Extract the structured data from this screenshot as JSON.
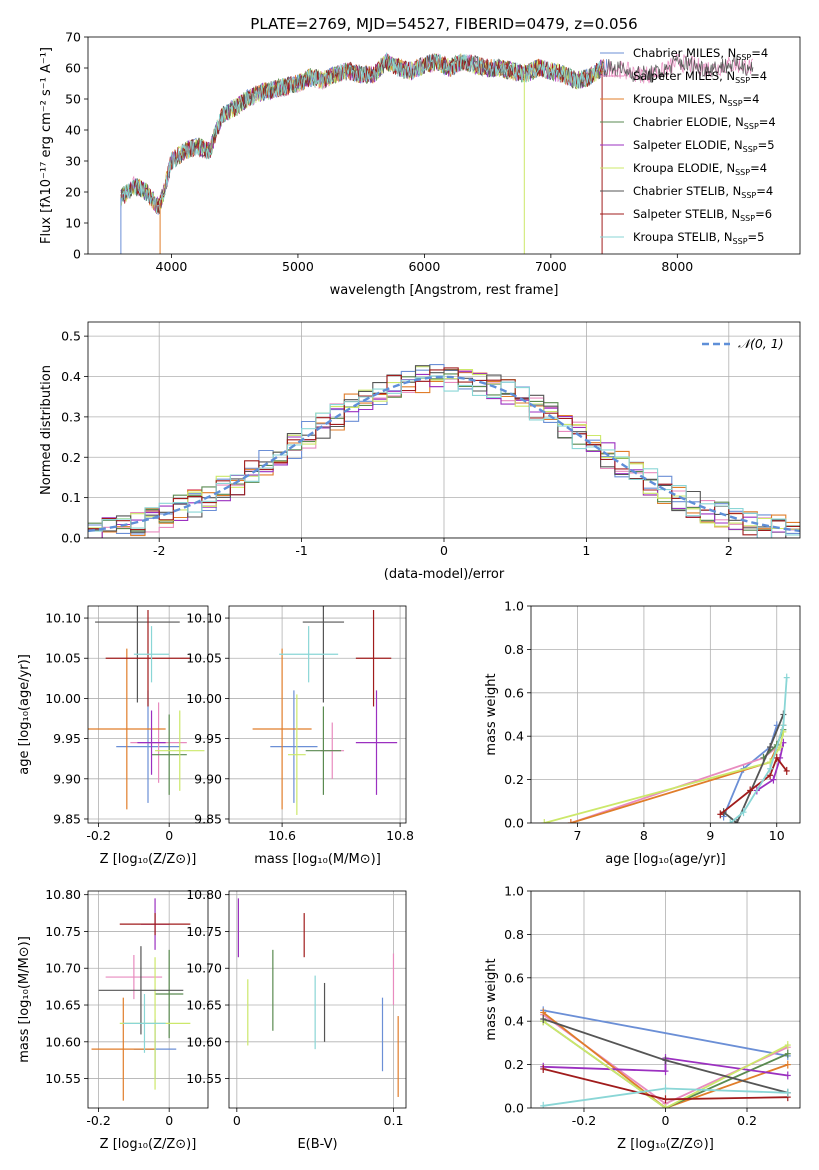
{
  "figure": {
    "title": "PLATE=2769, MJD=54527, FIBERID=0479, z=0.056"
  },
  "colors": {
    "Chabrier MILES": "#6b8fd6",
    "Salpeter MILES": "#e88bbf",
    "Kroupa MILES": "#e07d2a",
    "Chabrier ELODIE": "#5a8a50",
    "Salpeter ELODIE": "#9b30c0",
    "Kroupa ELODIE": "#cce86a",
    "Chabrier STELIB": "#555555",
    "Salpeter STELIB": "#a01c1c",
    "Kroupa STELIB": "#8ad6d6"
  },
  "chart_data": [
    {
      "id": "spectrum",
      "type": "line",
      "title": "PLATE=2769, MJD=54527, FIBERID=0479, z=0.056",
      "xlabel": "wavelength [Angstrom, rest frame]",
      "ylabel": "Flux [fλ10⁻¹⁷ erg cm⁻² s⁻¹ A⁻¹]",
      "xlim": [
        3340,
        8970
      ],
      "ylim": [
        0,
        70
      ],
      "xticks": [
        4000,
        5000,
        6000,
        7000,
        8000
      ],
      "yticks": [
        0,
        10,
        20,
        30,
        40,
        50,
        60,
        70
      ],
      "grid": false,
      "legend_position": "top-right",
      "spectrum_x": [
        3600,
        3700,
        3800,
        3900,
        3950,
        4000,
        4100,
        4200,
        4300,
        4400,
        4500,
        4600,
        4700,
        4800,
        4900,
        5000,
        5100,
        5200,
        5300,
        5400,
        5500,
        5600,
        5700,
        5800,
        5900,
        6000,
        6100,
        6200,
        6300,
        6400,
        6500,
        6600,
        6700,
        6800,
        6900,
        7000,
        7100,
        7200,
        7300,
        7400,
        7500,
        7600,
        7700,
        7800,
        7900,
        8000,
        8100,
        8200,
        8300,
        8400,
        8500,
        8600
      ],
      "spectrum_y": [
        18,
        22,
        20,
        15,
        22,
        30,
        33,
        35,
        33,
        45,
        47,
        50,
        52,
        53,
        54,
        55,
        57,
        56,
        58,
        59,
        58,
        58,
        62,
        60,
        59,
        61,
        62,
        60,
        62,
        61,
        60,
        60,
        59,
        58,
        60,
        59,
        58,
        56,
        57,
        60,
        60,
        59,
        58,
        58,
        59,
        62,
        61,
        60,
        60,
        61,
        61,
        60
      ],
      "legend": [
        {
          "label": "Chabrier MILES, N",
          "sub": "SSP",
          "suffix": "=4"
        },
        {
          "label": "Salpeter MILES, N",
          "sub": "SSP",
          "suffix": "=4"
        },
        {
          "label": "Kroupa MILES, N",
          "sub": "SSP",
          "suffix": "=4"
        },
        {
          "label": "Chabrier ELODIE, N",
          "sub": "SSP",
          "suffix": "=4"
        },
        {
          "label": "Salpeter ELODIE, N",
          "sub": "SSP",
          "suffix": "=5"
        },
        {
          "label": "Kroupa ELODIE, N",
          "sub": "SSP",
          "suffix": "=4"
        },
        {
          "label": "Chabrier STELIB, N",
          "sub": "SSP",
          "suffix": "=4"
        },
        {
          "label": "Salpeter STELIB, N",
          "sub": "SSP",
          "suffix": "=6"
        },
        {
          "label": "Kroupa STELIB, N",
          "sub": "SSP",
          "suffix": "=5"
        }
      ]
    },
    {
      "id": "residuals",
      "type": "line",
      "xlabel": "(data-model)/error",
      "ylabel": "Normed distribution",
      "xlim": [
        -2.5,
        2.5
      ],
      "ylim": [
        0,
        0.535
      ],
      "xticks": [
        -2,
        -1,
        0,
        1,
        2
      ],
      "yticks": [
        0.0,
        0.1,
        0.2,
        0.3,
        0.4,
        0.5
      ],
      "grid": true,
      "legend_position": "top-right",
      "legend_label": "𝒩(0, 1)",
      "bin_width": 0.1
    },
    {
      "id": "age_vs_Z",
      "type": "scatter",
      "xlabel": "Z [log₁₀(Z/Z⊙)]",
      "ylabel": "age  [log₁₀(age/yr)]",
      "xlim": [
        -0.23,
        0.11
      ],
      "ylim": [
        9.845,
        10.115
      ],
      "xticks": [
        -0.2,
        0.0
      ],
      "yticks": [
        9.85,
        9.9,
        9.95,
        10.0,
        10.05,
        10.1
      ],
      "grid": true,
      "points": [
        {
          "series": "Chabrier MILES",
          "x": -0.06,
          "xerr": 0.09,
          "y": 9.94,
          "yerr": 0.07
        },
        {
          "series": "Salpeter MILES",
          "x": -0.03,
          "xerr": 0.08,
          "y": 9.945,
          "yerr": 0.05
        },
        {
          "series": "Kroupa MILES",
          "x": -0.12,
          "xerr": 0.11,
          "y": 9.962,
          "yerr": 0.1
        },
        {
          "series": "Chabrier ELODIE",
          "x": 0.0,
          "xerr": 0.05,
          "y": 9.93,
          "yerr": 0.05
        },
        {
          "series": "Salpeter ELODIE",
          "x": -0.05,
          "xerr": 0.04,
          "y": 9.945,
          "yerr": 0.04
        },
        {
          "series": "Kroupa ELODIE",
          "x": 0.03,
          "xerr": 0.07,
          "y": 9.935,
          "yerr": 0.05
        },
        {
          "series": "Chabrier STELIB",
          "x": -0.09,
          "xerr": 0.12,
          "y": 10.095,
          "yerr": 0.1
        },
        {
          "series": "Salpeter STELIB",
          "x": -0.06,
          "xerr": 0.12,
          "y": 10.05,
          "yerr": 0.06
        },
        {
          "series": "Kroupa STELIB",
          "x": -0.05,
          "xerr": 0.05,
          "y": 10.055,
          "yerr": 0.035
        }
      ]
    },
    {
      "id": "age_vs_mass",
      "type": "scatter",
      "xlabel": "mass [log₁₀(M/M⊙)]",
      "ylabel": "",
      "xlim": [
        10.51,
        10.81
      ],
      "ylim": [
        9.845,
        10.115
      ],
      "xticks": [
        10.6,
        10.8
      ],
      "yticks": [
        9.85,
        9.9,
        9.95,
        10.0,
        10.05,
        10.1
      ],
      "grid": true,
      "points": [
        {
          "series": "Chabrier MILES",
          "x": 10.62,
          "xerr": 0.04,
          "y": 9.94,
          "yerr": 0.07
        },
        {
          "series": "Salpeter MILES",
          "x": 10.685,
          "xerr": 0.02,
          "y": 9.935,
          "yerr": 0.035
        },
        {
          "series": "Kroupa MILES",
          "x": 10.6,
          "xerr": 0.05,
          "y": 9.962,
          "yerr": 0.1
        },
        {
          "series": "Chabrier ELODIE",
          "x": 10.67,
          "xerr": 0.03,
          "y": 9.935,
          "yerr": 0.055
        },
        {
          "series": "Salpeter ELODIE",
          "x": 10.76,
          "xerr": 0.035,
          "y": 9.945,
          "yerr": 0.065
        },
        {
          "series": "Kroupa ELODIE",
          "x": 10.625,
          "xerr": 0.015,
          "y": 9.93,
          "yerr": 0.075
        },
        {
          "series": "Chabrier STELIB",
          "x": 10.67,
          "xerr": 0.035,
          "y": 10.095,
          "yerr": 0.1
        },
        {
          "series": "Salpeter STELIB",
          "x": 10.755,
          "xerr": 0.03,
          "y": 10.05,
          "yerr": 0.06
        },
        {
          "series": "Kroupa STELIB",
          "x": 10.645,
          "xerr": 0.05,
          "y": 10.055,
          "yerr": 0.035
        }
      ]
    },
    {
      "id": "mass_weight_vs_age",
      "type": "line",
      "xlabel": "age  [log₁₀(age/yr)]",
      "ylabel": "mass weight",
      "xlim": [
        6.3,
        10.35
      ],
      "ylim": [
        0.0,
        1.0
      ],
      "xticks": [
        7,
        8,
        9,
        10
      ],
      "yticks": [
        0.0,
        0.2,
        0.4,
        0.6,
        0.8,
        1.0
      ],
      "grid": true,
      "series": [
        {
          "name": "Chabrier MILES",
          "x": [
            9.2,
            9.5,
            9.9,
            10.0
          ],
          "y": [
            0.03,
            0.25,
            0.35,
            0.45
          ]
        },
        {
          "name": "Salpeter MILES",
          "x": [
            6.9,
            9.8,
            10.0,
            10.1
          ],
          "y": [
            0.0,
            0.3,
            0.35,
            0.45
          ]
        },
        {
          "name": "Kroupa MILES",
          "x": [
            6.9,
            9.9,
            10.0,
            10.1
          ],
          "y": [
            0.0,
            0.28,
            0.35,
            0.45
          ]
        },
        {
          "name": "Chabrier ELODIE",
          "x": [
            9.8,
            10.0,
            10.1
          ],
          "y": [
            0.3,
            0.36,
            0.43
          ]
        },
        {
          "name": "Salpeter ELODIE",
          "x": [
            9.7,
            9.95,
            10.05,
            10.1
          ],
          "y": [
            0.15,
            0.2,
            0.3,
            0.37
          ]
        },
        {
          "name": "Kroupa ELODIE",
          "x": [
            6.5,
            9.9,
            10.05,
            10.1
          ],
          "y": [
            0.0,
            0.28,
            0.35,
            0.42
          ]
        },
        {
          "name": "Chabrier STELIB",
          "x": [
            9.2,
            9.4,
            9.9,
            10.1
          ],
          "y": [
            0.05,
            0.0,
            0.35,
            0.5
          ]
        },
        {
          "name": "Salpeter STELIB",
          "x": [
            9.15,
            9.6,
            9.9,
            10.0,
            10.15
          ],
          "y": [
            0.04,
            0.15,
            0.22,
            0.3,
            0.24
          ]
        },
        {
          "name": "Kroupa STELIB",
          "x": [
            9.3,
            9.5,
            9.9,
            10.1,
            10.15
          ],
          "y": [
            0.0,
            0.05,
            0.25,
            0.45,
            0.67
          ]
        }
      ]
    },
    {
      "id": "mass_vs_Z",
      "type": "scatter",
      "xlabel": "Z [log₁₀(Z/Z⊙)]",
      "ylabel": "mass [log₁₀(M/M⊙)]",
      "xlim": [
        -0.23,
        0.11
      ],
      "ylim": [
        10.51,
        10.805
      ],
      "xticks": [
        -0.2,
        0.0
      ],
      "yticks": [
        10.55,
        10.6,
        10.65,
        10.7,
        10.75,
        10.8
      ],
      "grid": true,
      "points": [
        {
          "series": "Chabrier MILES",
          "x": -0.04,
          "xerr": 0.06,
          "y": 10.59,
          "yerr": 0.04
        },
        {
          "series": "Salpeter MILES",
          "x": -0.1,
          "xerr": 0.08,
          "y": 10.688,
          "yerr": 0.03
        },
        {
          "series": "Kroupa MILES",
          "x": -0.13,
          "xerr": 0.09,
          "y": 10.59,
          "yerr": 0.07
        },
        {
          "series": "Chabrier ELODIE",
          "x": 0.0,
          "xerr": 0.04,
          "y": 10.665,
          "yerr": 0.06
        },
        {
          "series": "Salpeter ELODIE",
          "x": -0.04,
          "xerr": 0.04,
          "y": 10.76,
          "yerr": 0.035
        },
        {
          "series": "Kroupa ELODIE",
          "x": -0.04,
          "xerr": 0.1,
          "y": 10.625,
          "yerr": 0.09
        },
        {
          "series": "Chabrier STELIB",
          "x": -0.08,
          "xerr": 0.12,
          "y": 10.67,
          "yerr": 0.06
        },
        {
          "series": "Salpeter STELIB",
          "x": -0.04,
          "xerr": 0.1,
          "y": 10.76,
          "yerr": 0.015
        },
        {
          "series": "Kroupa STELIB",
          "x": -0.07,
          "xerr": 0.06,
          "y": 10.625,
          "yerr": 0.04
        }
      ]
    },
    {
      "id": "mass_vs_ebv",
      "type": "scatter",
      "xlabel": "E(B-V)",
      "ylabel": "",
      "xlim": [
        -0.005,
        0.108
      ],
      "ylim": [
        10.51,
        10.805
      ],
      "xticks": [
        0.0,
        0.1
      ],
      "yticks": [
        10.55,
        10.6,
        10.65,
        10.7,
        10.75,
        10.8
      ],
      "grid": true,
      "points": [
        {
          "series": "Chabrier MILES",
          "x": 0.093,
          "y": 10.61,
          "yerr": 0.05
        },
        {
          "series": "Salpeter MILES",
          "x": 0.1,
          "y": 10.685,
          "yerr": 0.035
        },
        {
          "series": "Kroupa MILES",
          "x": 0.103,
          "y": 10.58,
          "yerr": 0.055
        },
        {
          "series": "Chabrier ELODIE",
          "x": 0.023,
          "y": 10.67,
          "yerr": 0.055
        },
        {
          "series": "Salpeter ELODIE",
          "x": 0.001,
          "y": 10.755,
          "yerr": 0.04
        },
        {
          "series": "Kroupa ELODIE",
          "x": 0.007,
          "y": 10.64,
          "yerr": 0.045
        },
        {
          "series": "Chabrier STELIB",
          "x": 0.056,
          "y": 10.64,
          "yerr": 0.04
        },
        {
          "series": "Salpeter STELIB",
          "x": 0.043,
          "y": 10.745,
          "yerr": 0.03
        },
        {
          "series": "Kroupa STELIB",
          "x": 0.05,
          "y": 10.64,
          "yerr": 0.05
        }
      ]
    },
    {
      "id": "mass_weight_vs_Z",
      "type": "line",
      "xlabel": "Z [log₁₀(Z/Z⊙)]",
      "ylabel": "mass weight",
      "xlim": [
        -0.33,
        0.33
      ],
      "ylim": [
        0.0,
        1.0
      ],
      "xticks": [
        -0.2,
        0.0,
        0.2
      ],
      "yticks": [
        0.0,
        0.2,
        0.4,
        0.6,
        0.8,
        1.0
      ],
      "grid": true,
      "series": [
        {
          "name": "Chabrier MILES",
          "x": [
            -0.3,
            0.3
          ],
          "y": [
            0.45,
            0.24
          ]
        },
        {
          "name": "Salpeter MILES",
          "x": [
            -0.3,
            0.0,
            0.3
          ],
          "y": [
            0.43,
            0.02,
            0.28
          ]
        },
        {
          "name": "Kroupa MILES",
          "x": [
            -0.3,
            0.0,
            0.3
          ],
          "y": [
            0.44,
            0.0,
            0.2
          ]
        },
        {
          "name": "Chabrier ELODIE",
          "x": [
            -0.3,
            0.0,
            0.3
          ],
          "y": [
            0.4,
            0.0,
            0.25
          ]
        },
        {
          "name": "Salpeter ELODIE",
          "x": [
            -0.3,
            0.0,
            0.0,
            0.3
          ],
          "y": [
            0.19,
            0.17,
            0.23,
            0.15
          ]
        },
        {
          "name": "Kroupa ELODIE",
          "x": [
            -0.3,
            0.0,
            0.3
          ],
          "y": [
            0.4,
            0.0,
            0.29
          ]
        },
        {
          "name": "Chabrier STELIB",
          "x": [
            -0.3,
            0.0,
            0.3
          ],
          "y": [
            0.41,
            0.22,
            0.07
          ]
        },
        {
          "name": "Salpeter STELIB",
          "x": [
            -0.3,
            0.0,
            0.3
          ],
          "y": [
            0.18,
            0.04,
            0.05
          ]
        },
        {
          "name": "Kroupa STELIB",
          "x": [
            -0.3,
            0.0,
            0.3
          ],
          "y": [
            0.01,
            0.09,
            0.07
          ]
        }
      ]
    }
  ]
}
